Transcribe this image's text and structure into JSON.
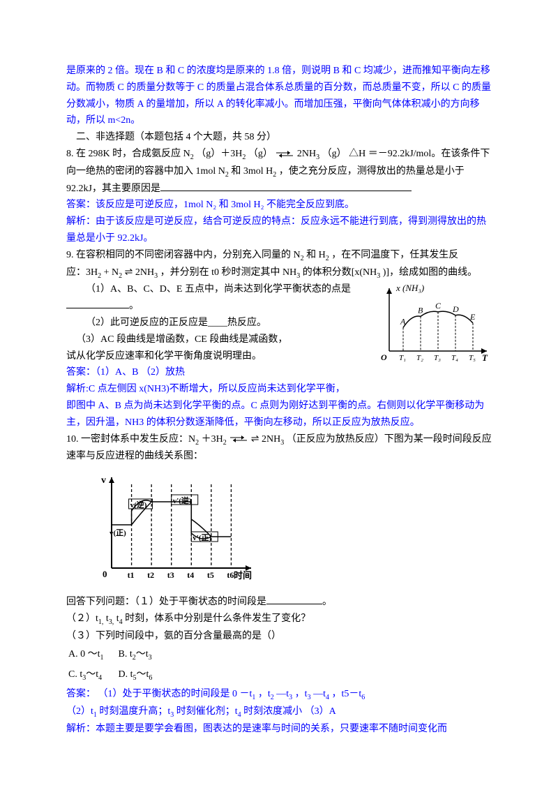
{
  "intro": {
    "line1": "是原来的 2 倍。现在 B 和 C 的浓度均是原来的 1.8 倍，则说明 B 和 C 均减少，进而推知平衡向左移动。而物质 C 的质量分数等于 C 的质量占混合体系总质量的百分数，而总质量不变，所以 C 的质量分数减小，物质 A 的量增加，所以 A 的转化率减小。而增加压强，平衡向气体体积减小的方向移动，所以 m<2n。"
  },
  "sectionHeader": "二、非选择题（本题包括 4 个大题，共 58 分）",
  "q8": {
    "text_a": "8.  在 298K 时，合成氨反应 N",
    "text_b": "（g）＋3H",
    "text_c": "（g）",
    "eq_right": "2NH",
    "text_d": "（g）  △H  ＝－92.2kJ/mol。在该条件下向一绝热的密闭的容器中加入 1mol N",
    "text_e": " 和 3mol H",
    "text_f": "，使之充分反应，测得放出的热量总是小于 92.2kJ，其主要原因是",
    "ans_label": "答案：",
    "ans": "该反应是可逆反应，1mol N₂ 和 3mol H₂ 不能完全反应到底。",
    "expl_label": "解析：",
    "expl": "由于该反应是可逆反应，结合可逆反应的特点：反应永远不能进行到底，得到测得放出的热量总是小于 92.2kJ。"
  },
  "q9": {
    "line1a": "9. 在容积相同的不同密闭容器中内，分别充入同量的 N",
    "line1b": " 和 H",
    "line1c": "，在不同温度下，任其发生反",
    "line2a": "应：3H",
    "line2b": " + N",
    "line2c": " ⇌ 2NH",
    "line2d": " ，并分别在 t0 秒时测定其中 NH",
    "line2e": " 的体积分数[x(NH",
    "line2f": ")]，绘成如图的曲线。",
    "sub1_label": "（1）A、B、C、D、E 五点中，尚未达到化学平衡状态的点是",
    "sub1_blank": "                    。",
    "sub2_label": "（2）此可逆反应的正反应是____热反应。",
    "sub3_label": "（3）AC 段曲线是增函数，CE 段曲线是减函数，",
    "sub3_line2": "试从化学反应速率和化学平衡角度说明理由。",
    "ans_label": "答案：",
    "ans": "（1）A、B （2）放热",
    "expl_label": "解析:",
    "expl_l1": "C 点左侧因 x(NH3)不断增大，所以反应尚未达到化学平衡，",
    "expl_l2": "即图中 A、B 点为尚未达到化学平衡的点。C 点则为刚好达到平衡的点。右侧则以化学平衡移动为主，因升温，NH3 的体积分数逐渐降低，平衡向左移动，所以正反应为放热反应。",
    "chart": {
      "y_axis_label": "x (NH₃)",
      "x_axis_label": "T",
      "points": [
        "A",
        "B",
        "C",
        "D",
        "E"
      ],
      "ticks": [
        "T₁",
        "T₂",
        "T₃",
        "T₄",
        "T₅"
      ],
      "curve_values": [
        0.42,
        0.62,
        0.7,
        0.64,
        0.5
      ],
      "axis_color": "#000000",
      "curve_color": "#000000",
      "bg": "#ffffff"
    }
  },
  "q10": {
    "line1a": "10. 一密封体系中发生反应：N",
    "line1b": "＋3H",
    "line1c": " ⇌ 2NH",
    "line1d": "（正反应为放热反应）下图为某一段时间段反应速率与反应进程的曲线关系图：",
    "chart": {
      "y_axis_label": "v",
      "x_axis_label": "时间",
      "ticks": [
        "t1",
        "t2",
        "t3",
        "t4",
        "t5",
        "t6"
      ],
      "top_labels": [
        "v(逆)",
        "v'(逆)",
        "v正",
        "v'(正)"
      ],
      "axis_color": "#000000",
      "bg": "#ffffff",
      "font_weight": "bold"
    },
    "q_intro": "回答下列问题：（１）处于平衡状态的时间段是",
    "q_blank_end": "。",
    "q2a": "（２）t",
    "q2b": "t",
    "q2c": "t",
    "q2d": "时刻，体系中分别是什么条件发生了变化？",
    "q3": "（３）下列时间段中，氨的百分含量最高的是（）",
    "optA_a": "A. 0 ～t",
    "optB_a": "B. t",
    "optB_b": "～t",
    "optC_a": "C. t",
    "optC_b": "～t",
    "optD_a": "D. t",
    "optD_b": "～t",
    "ans_label": "答案：",
    "ans_l1a": "（1）处于平衡状态的时间段是 0 －t",
    "ans_l1b": "，t",
    "ans_l1c": "—t",
    "ans_l1d": "，t",
    "ans_l1e": "—t",
    "ans_l1f": "，t5－t",
    "ans_l2a": "（2）t",
    "ans_l2b": " 时刻温度升高；t",
    "ans_l2c": " 时刻催化剂；t",
    "ans_l2d": " 时刻浓度减小 （3）A",
    "expl_label": "解析：",
    "expl": "本题主要是要学会看图，图表达的是速率与时间的关系，只要速率不随时间变化而"
  }
}
